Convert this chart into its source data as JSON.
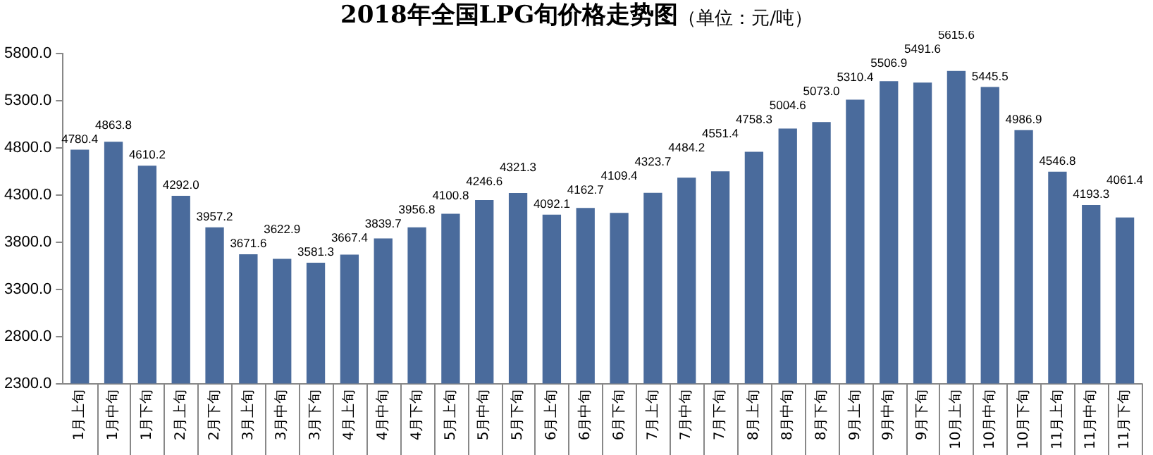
{
  "chart_data": {
    "type": "bar",
    "title": "2018年全国LPG旬价格走势图",
    "subtitle": "（单位：元/吨）",
    "categories": [
      "1月上旬",
      "1月中旬",
      "1月下旬",
      "2月上旬",
      "2月下旬",
      "3月上旬",
      "3月中旬",
      "3月下旬",
      "4月上旬",
      "4月中旬",
      "4月下旬",
      "5月上旬",
      "5月中旬",
      "5月下旬",
      "6月上旬",
      "6月中旬",
      "6月下旬",
      "7月上旬",
      "7月中旬",
      "7月下旬",
      "8月上旬",
      "8月中旬",
      "8月下旬",
      "9月上旬",
      "9月中旬",
      "9月下旬",
      "10月上旬",
      "10月中旬",
      "10月下旬",
      "11月上旬",
      "11月中旬",
      "11月下旬"
    ],
    "values": [
      4780.4,
      4863.8,
      4610.2,
      4292.0,
      3957.2,
      3671.6,
      3622.9,
      3581.3,
      3667.4,
      3839.7,
      3956.8,
      4100.8,
      4246.6,
      4321.3,
      4092.1,
      4162.7,
      4109.4,
      4323.7,
      4484.2,
      4551.4,
      4758.3,
      5004.6,
      5073.0,
      5310.4,
      5506.9,
      5491.6,
      5615.6,
      5445.5,
      4986.9,
      4546.8,
      4193.3,
      4061.4
    ],
    "value_labels": [
      "4780.4",
      "4863.8",
      "4610.2",
      "4292.0",
      "3957.2",
      "3671.6",
      "3622.9",
      "3581.3",
      "3667.4",
      "3839.7",
      "3956.8",
      "4100.8",
      "4246.6",
      "4321.3",
      "4092.1",
      "4162.7",
      "4109.4",
      "4323.7",
      "4484.2",
      "4551.4",
      "4758.3",
      "5004.6",
      "5073.0",
      "5310.4",
      "5506.9",
      "5491.6",
      "5615.6",
      "5445.5",
      "4986.9",
      "4546.8",
      "4193.3",
      "4061.4"
    ],
    "color": "#4a6b9c",
    "ylim": [
      2300,
      5800
    ],
    "yticks": [
      {
        "value": 2300,
        "label": "2300.0"
      },
      {
        "value": 2800,
        "label": "2800.0"
      },
      {
        "value": 3300,
        "label": "3300.0"
      },
      {
        "value": 3800,
        "label": "3800.0"
      },
      {
        "value": 4300,
        "label": "4300.0"
      },
      {
        "value": 4800,
        "label": "4800.0"
      },
      {
        "value": 5300,
        "label": "5300.0"
      },
      {
        "value": 5800,
        "label": "5800.0"
      }
    ],
    "grid": false,
    "legend": false
  }
}
